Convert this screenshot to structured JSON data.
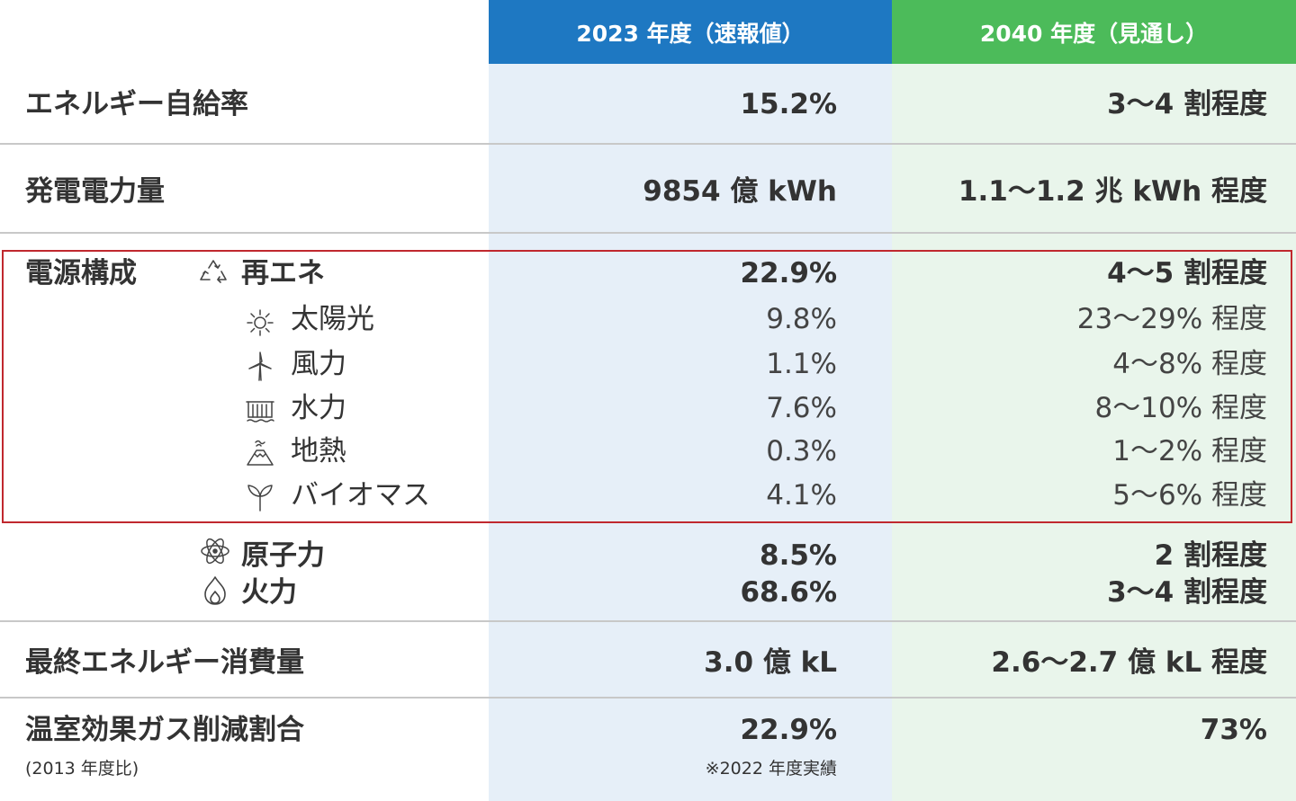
{
  "header": {
    "col_2023": "2023 年度（速報値）",
    "col_2040": "2040 年度（見通し）"
  },
  "rows": {
    "self_sufficiency": {
      "label": "エネルギー自給率",
      "v2023": "15.2%",
      "v2040": "3～4 割程度"
    },
    "generation": {
      "label": "発電電力量",
      "v2023": "9854 億 kWh",
      "v2040": "1.1～1.2 兆 kWh 程度"
    },
    "mix": {
      "label": "電源構成",
      "renewable": {
        "label": "再エネ",
        "icon": "recycle-icon",
        "v2023": "22.9%",
        "v2040": "4～5 割程度"
      },
      "solar": {
        "label": "太陽光",
        "icon": "sun-icon",
        "v2023": "9.8%",
        "v2040": "23～29% 程度"
      },
      "wind": {
        "label": "風力",
        "icon": "wind-turbine-icon",
        "v2023": "1.1%",
        "v2040": "4～8% 程度"
      },
      "hydro": {
        "label": "水力",
        "icon": "dam-icon",
        "v2023": "7.6%",
        "v2040": "8～10% 程度"
      },
      "geothermal": {
        "label": "地熱",
        "icon": "volcano-icon",
        "v2023": "0.3%",
        "v2040": "1～2% 程度"
      },
      "biomass": {
        "label": "バイオマス",
        "icon": "sprout-icon",
        "v2023": "4.1%",
        "v2040": "5～6% 程度"
      },
      "nuclear": {
        "label": "原子力",
        "icon": "atom-icon",
        "v2023": "8.5%",
        "v2040": "2 割程度"
      },
      "thermal": {
        "label": "火力",
        "icon": "flame-icon",
        "v2023": "68.6%",
        "v2040": "3～4 割程度"
      }
    },
    "final_consumption": {
      "label": "最終エネルギー消費量",
      "v2023": "3.0 億 kL",
      "v2040": "2.6～2.7 億 kL 程度"
    },
    "ghg": {
      "label": "温室効果ガス削減割合",
      "sublabel": "(2013 年度比)",
      "v2023": "22.9%",
      "note2023": "※2022 年度実績",
      "v2040": "73%"
    }
  },
  "colors": {
    "header_2023": "#1e78c2",
    "header_2040": "#4cbb5a",
    "bg_2023": "#e6eff8",
    "bg_2040": "#e9f5eb",
    "highlight_border": "#c0282e"
  }
}
